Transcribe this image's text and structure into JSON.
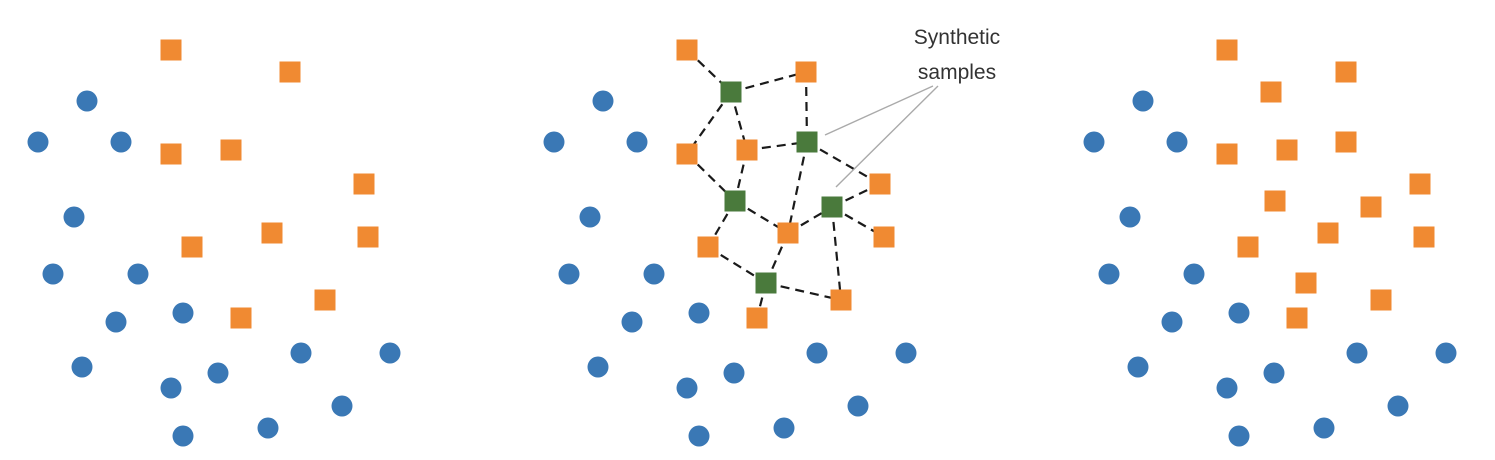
{
  "annotation": {
    "line1": "Synthetic",
    "line2": "samples"
  },
  "colors": {
    "majority": "#3a78b5",
    "minority": "#f08a32",
    "synthetic": "#4a7a3c",
    "connector": "#1a1a1a",
    "callout": "#aaaaaa"
  },
  "icons": {
    "majority": "blue-circle",
    "minority": "orange-square",
    "synthetic": "green-square"
  }
}
